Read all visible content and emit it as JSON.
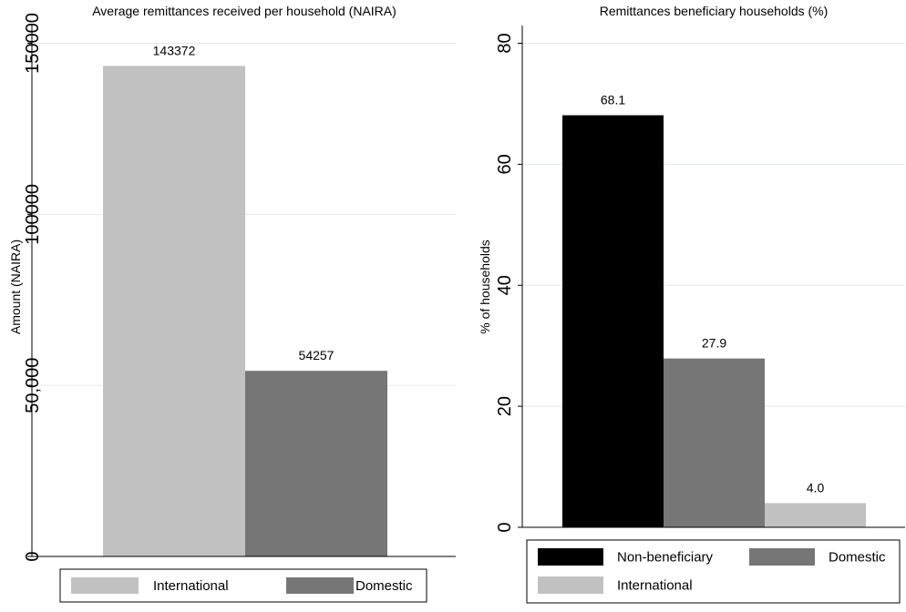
{
  "chart_data": [
    {
      "type": "bar",
      "title": "Average remittances received per household (NAIRA)",
      "ylabel": "Amount (NAIRA)",
      "xlabel": "",
      "ylim": [
        0,
        150000
      ],
      "yticks": [
        0,
        50000,
        100000,
        150000
      ],
      "ytick_labels": [
        "0",
        "50,000",
        "100000",
        "150000"
      ],
      "grid": true,
      "legend_position": "bottom",
      "series": [
        {
          "name": "International",
          "values": [
            143372
          ],
          "color": "#c1c1c1",
          "label": "143372"
        },
        {
          "name": "Domestic",
          "values": [
            54257
          ],
          "color": "#767676",
          "label": "54257"
        }
      ]
    },
    {
      "type": "bar",
      "title": "Remittances beneficiary households (%)",
      "ylabel": "% of households",
      "xlabel": "",
      "ylim": [
        0,
        80
      ],
      "yticks": [
        0,
        20,
        40,
        60,
        80
      ],
      "ytick_labels": [
        "0",
        "20",
        "40",
        "60",
        "80"
      ],
      "grid": true,
      "legend_position": "bottom",
      "series": [
        {
          "name": "Non-beneficiary",
          "values": [
            68.1
          ],
          "color": "#000000",
          "label": "68.1"
        },
        {
          "name": "Domestic",
          "values": [
            27.9
          ],
          "color": "#767676",
          "label": "27.9"
        },
        {
          "name": "International",
          "values": [
            4.0
          ],
          "color": "#c1c1c1",
          "label": "4.0"
        }
      ]
    }
  ]
}
